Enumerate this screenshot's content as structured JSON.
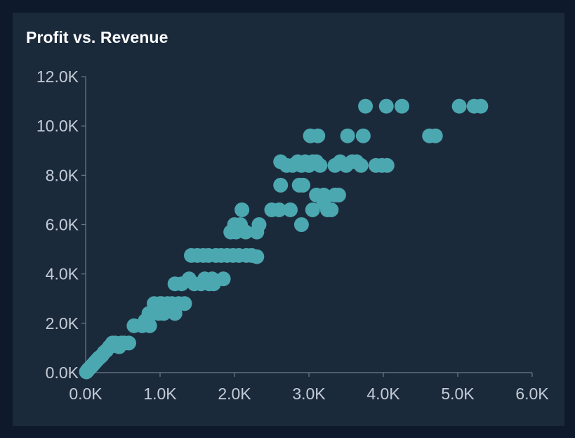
{
  "chart_data": {
    "type": "scatter",
    "title": "Profit vs. Revenue",
    "xlabel": "",
    "ylabel": "",
    "xlim": [
      0,
      6000
    ],
    "ylim": [
      0,
      12000
    ],
    "x_ticks": [
      "0.0K",
      "1.0K",
      "2.0K",
      "3.0K",
      "4.0K",
      "5.0K",
      "6.0K"
    ],
    "y_ticks": [
      "0.0K",
      "2.0K",
      "4.0K",
      "6.0K",
      "8.0K",
      "10.0K",
      "12.0K"
    ],
    "x_tick_values": [
      0,
      1000,
      2000,
      3000,
      4000,
      5000,
      6000
    ],
    "y_tick_values": [
      0,
      2000,
      4000,
      6000,
      8000,
      10000,
      12000
    ],
    "point_color": "#4ca8b0",
    "points": [
      [
        10,
        30
      ],
      [
        25,
        80
      ],
      [
        40,
        140
      ],
      [
        60,
        200
      ],
      [
        80,
        260
      ],
      [
        100,
        330
      ],
      [
        120,
        400
      ],
      [
        140,
        460
      ],
      [
        160,
        530
      ],
      [
        180,
        600
      ],
      [
        200,
        640
      ],
      [
        220,
        700
      ],
      [
        30,
        110
      ],
      [
        50,
        170
      ],
      [
        70,
        230
      ],
      [
        90,
        290
      ],
      [
        110,
        360
      ],
      [
        130,
        430
      ],
      [
        150,
        500
      ],
      [
        170,
        560
      ],
      [
        250,
        820
      ],
      [
        280,
        900
      ],
      [
        320,
        1050
      ],
      [
        360,
        1200
      ],
      [
        400,
        1200
      ],
      [
        450,
        1050
      ],
      [
        480,
        1200
      ],
      [
        520,
        1200
      ],
      [
        580,
        1200
      ],
      [
        380,
        1100
      ],
      [
        650,
        1900
      ],
      [
        760,
        1900
      ],
      [
        860,
        1900
      ],
      [
        800,
        2100
      ],
      [
        900,
        2400
      ],
      [
        960,
        2600
      ],
      [
        1000,
        2800
      ],
      [
        1050,
        2400
      ],
      [
        1100,
        2800
      ],
      [
        1150,
        2600
      ],
      [
        1200,
        2400
      ],
      [
        1250,
        2800
      ],
      [
        1330,
        2800
      ],
      [
        850,
        2400
      ],
      [
        920,
        2800
      ],
      [
        1020,
        2800
      ],
      [
        980,
        2400
      ],
      [
        1080,
        2600
      ],
      [
        1160,
        2800
      ],
      [
        1200,
        3600
      ],
      [
        1290,
        3600
      ],
      [
        1390,
        3800
      ],
      [
        1460,
        3600
      ],
      [
        1550,
        3600
      ],
      [
        1600,
        3800
      ],
      [
        1660,
        3600
      ],
      [
        1720,
        3600
      ],
      [
        1700,
        3800
      ],
      [
        1850,
        3800
      ],
      [
        1420,
        4750
      ],
      [
        1500,
        4750
      ],
      [
        1580,
        4750
      ],
      [
        1650,
        4750
      ],
      [
        1750,
        4750
      ],
      [
        1820,
        4750
      ],
      [
        1900,
        4750
      ],
      [
        1980,
        4750
      ],
      [
        2060,
        4750
      ],
      [
        2160,
        4750
      ],
      [
        2230,
        4750
      ],
      [
        2300,
        4700
      ],
      [
        1950,
        5700
      ],
      [
        2020,
        5700
      ],
      [
        2080,
        6000
      ],
      [
        2150,
        5700
      ],
      [
        2300,
        5700
      ],
      [
        2330,
        6000
      ],
      [
        2000,
        6000
      ],
      [
        2100,
        6600
      ],
      [
        2500,
        6600
      ],
      [
        2600,
        6600
      ],
      [
        2750,
        6600
      ],
      [
        2900,
        6000
      ],
      [
        3050,
        6600
      ],
      [
        3250,
        6600
      ],
      [
        3300,
        6600
      ],
      [
        3200,
        6900
      ],
      [
        3350,
        7200
      ],
      [
        3200,
        7200
      ],
      [
        3100,
        7200
      ],
      [
        3400,
        7200
      ],
      [
        2620,
        7600
      ],
      [
        2870,
        7600
      ],
      [
        2920,
        7600
      ],
      [
        2620,
        8550
      ],
      [
        2700,
        8400
      ],
      [
        2780,
        8400
      ],
      [
        2850,
        8550
      ],
      [
        2900,
        8400
      ],
      [
        2950,
        8550
      ],
      [
        3000,
        8400
      ],
      [
        3050,
        8550
      ],
      [
        3100,
        8550
      ],
      [
        3150,
        8400
      ],
      [
        3350,
        8400
      ],
      [
        3420,
        8550
      ],
      [
        3500,
        8400
      ],
      [
        3580,
        8550
      ],
      [
        3640,
        8550
      ],
      [
        3700,
        8400
      ],
      [
        3900,
        8400
      ],
      [
        3980,
        8400
      ],
      [
        4050,
        8400
      ],
      [
        3020,
        9600
      ],
      [
        3120,
        9600
      ],
      [
        3520,
        9600
      ],
      [
        3730,
        9600
      ],
      [
        4620,
        9600
      ],
      [
        4700,
        9600
      ],
      [
        3760,
        10800
      ],
      [
        4040,
        10800
      ],
      [
        4250,
        10800
      ],
      [
        5020,
        10800
      ],
      [
        5220,
        10800
      ],
      [
        5310,
        10800
      ]
    ]
  }
}
